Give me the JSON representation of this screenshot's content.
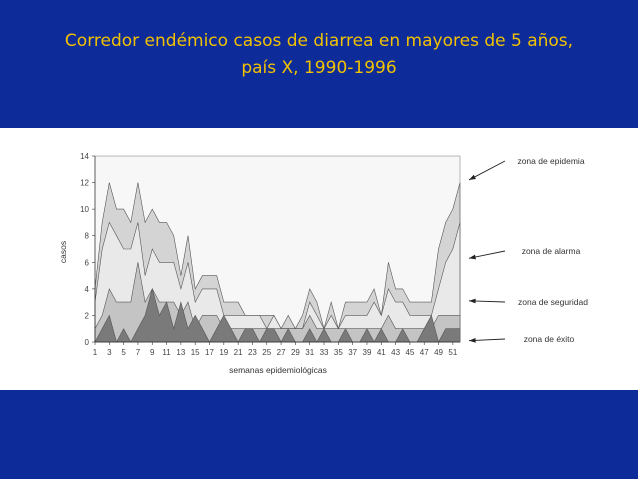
{
  "slide": {
    "title_line1": "Corredor endémico casos de diarrea en mayores de 5 años,",
    "title_line2": "país X, 1990-1996",
    "colors": {
      "background": "#0e2b9a",
      "title": "#f2c200",
      "panel": "#ffffff",
      "epidemia_fill": "#d4d4d4",
      "alarma_fill": "#e9e9e9",
      "seguridad_fill": "#c4c4c4",
      "exito_fill": "#7a7a7a"
    }
  },
  "chart_data": {
    "type": "area",
    "xlabel": "semanas epidemiológicas",
    "ylabel": "casos",
    "xlim": [
      1,
      52
    ],
    "ylim": [
      0,
      14
    ],
    "yticks": [
      0,
      2,
      4,
      6,
      8,
      10,
      12,
      14
    ],
    "xticks": [
      1,
      3,
      5,
      7,
      9,
      11,
      13,
      15,
      17,
      19,
      21,
      23,
      25,
      27,
      29,
      31,
      33,
      35,
      37,
      39,
      41,
      43,
      45,
      47,
      49,
      51
    ],
    "grid": false,
    "x": [
      1,
      2,
      3,
      4,
      5,
      6,
      7,
      8,
      9,
      10,
      11,
      12,
      13,
      14,
      15,
      16,
      17,
      18,
      19,
      20,
      21,
      22,
      23,
      24,
      25,
      26,
      27,
      28,
      29,
      30,
      31,
      32,
      33,
      34,
      35,
      36,
      37,
      38,
      39,
      40,
      41,
      42,
      43,
      44,
      45,
      46,
      47,
      48,
      49,
      50,
      51,
      52
    ],
    "series": [
      {
        "values": [
          4,
          9,
          12,
          10,
          10,
          9,
          12,
          9,
          10,
          9,
          9,
          8,
          5,
          8,
          4,
          5,
          5,
          5,
          3,
          3,
          3,
          2,
          2,
          2,
          2,
          2,
          1,
          2,
          1,
          2,
          4,
          3,
          1,
          3,
          1,
          3,
          3,
          3,
          3,
          4,
          2,
          6,
          4,
          4,
          3,
          3,
          3,
          3,
          7,
          9,
          10,
          12
        ]
      },
      {
        "values": [
          3,
          7,
          9,
          8,
          7,
          7,
          9,
          5,
          7,
          6,
          6,
          6,
          4,
          6,
          3,
          4,
          4,
          4,
          2,
          2,
          2,
          2,
          2,
          2,
          1,
          2,
          1,
          1,
          1,
          1,
          3,
          2,
          1,
          2,
          1,
          2,
          2,
          2,
          2,
          3,
          2,
          4,
          3,
          3,
          2,
          2,
          2,
          2,
          4,
          6,
          7,
          9
        ]
      },
      {
        "values": [
          1,
          2,
          4,
          3,
          3,
          3,
          6,
          3,
          4,
          3,
          3,
          3,
          2,
          3,
          1,
          2,
          2,
          2,
          1,
          1,
          1,
          1,
          1,
          1,
          1,
          1,
          1,
          1,
          1,
          1,
          2,
          1,
          1,
          1,
          1,
          1,
          1,
          1,
          1,
          1,
          1,
          2,
          1,
          1,
          1,
          1,
          1,
          1,
          2,
          2,
          2,
          2
        ]
      },
      {
        "values": [
          0,
          1,
          2,
          0,
          1,
          0,
          1,
          2,
          4,
          2,
          3,
          1,
          3,
          1,
          2,
          1,
          0,
          1,
          2,
          1,
          0,
          1,
          1,
          0,
          1,
          1,
          0,
          1,
          0,
          0,
          1,
          0,
          1,
          0,
          0,
          1,
          0,
          0,
          1,
          0,
          1,
          0,
          0,
          1,
          0,
          0,
          1,
          2,
          0,
          1,
          1,
          1
        ]
      }
    ],
    "annotations": [
      "zona de epidemia",
      "zona de alarma",
      "zona de seguridad",
      "zona de éxito"
    ]
  }
}
